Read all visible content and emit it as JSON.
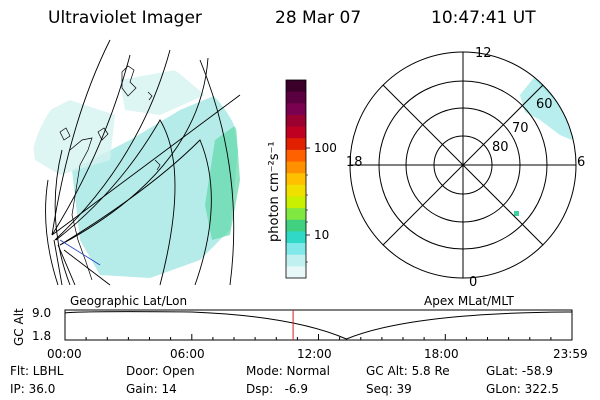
{
  "header": {
    "instrument": "Ultraviolet Imager",
    "date": "28 Mar 07",
    "time": "10:47:41 UT"
  },
  "colorbar": {
    "label": "photon cm⁻²s⁻¹",
    "ticks": [
      "100",
      "10"
    ],
    "colors": [
      "#3a002a",
      "#5a0040",
      "#7a0050",
      "#9a0030",
      "#c00020",
      "#e02000",
      "#ff6000",
      "#ff9000",
      "#ffc000",
      "#f0e000",
      "#c8f000",
      "#80e840",
      "#40d080",
      "#30d8c8",
      "#80e8e8",
      "#c0f0f0",
      "#e8f8f8"
    ]
  },
  "left_panel": {
    "caption": "Geographic Lat/Lon"
  },
  "right_panel": {
    "caption": "Apex MLat/MLT",
    "mlt_labels": {
      "top": "12",
      "right": "6",
      "bottom": "0",
      "left": "18"
    },
    "lat_labels": [
      "60",
      "70",
      "80"
    ]
  },
  "timeline": {
    "ylabel": "GC Alt",
    "y_ticks": [
      "9.0",
      "1.8"
    ],
    "x_ticks": [
      "00:00",
      "06:00",
      "12:00",
      "18:00",
      "23:59"
    ],
    "current_time_fraction": 0.4499
  },
  "status": {
    "filter": "Flt: LBHL",
    "ip": "IP: 36.0",
    "door": "Door: Open",
    "gain": "Gain: 14",
    "mode": "Mode: Normal",
    "dsp": "Dsp:   -6.9",
    "gc_alt": "GC Alt: 5.8 Re",
    "seq": "Seq: 39",
    "glat": "GLat: -58.9",
    "glon": "GLon: 322.5"
  }
}
